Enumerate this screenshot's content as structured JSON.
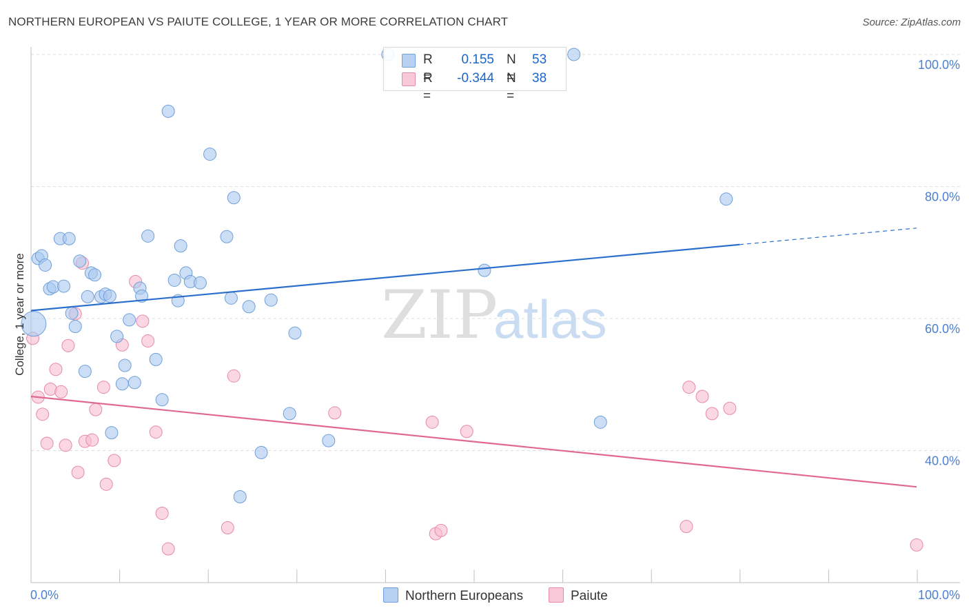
{
  "title": "NORTHERN EUROPEAN VS PAIUTE COLLEGE, 1 YEAR OR MORE CORRELATION CHART",
  "source": "Source: ZipAtlas.com",
  "watermark": {
    "zip": "ZIP",
    "atlas": "atlas"
  },
  "legend": {
    "series1": {
      "r_label": "R =",
      "r_value": "0.155",
      "n_label": "N =",
      "n_value": "53",
      "name": "Northern Europeans"
    },
    "series2": {
      "r_label": "R =",
      "r_value": "-0.344",
      "n_label": "N =",
      "n_value": "38",
      "name": "Paiute"
    }
  },
  "colors": {
    "blue_fill": "#a9c8f0",
    "blue_stroke": "#6f9fd8",
    "blue_line": "#2b6fcc",
    "pink_fill": "#f6bcd0",
    "pink_stroke": "#e58aa8",
    "pink_line": "#e06892",
    "grid": "#dcdcdc",
    "tick_text": "#4b7fcf"
  },
  "chart_data": {
    "type": "scatter",
    "title": "NORTHERN EUROPEAN VS PAIUTE COLLEGE, 1 YEAR OR MORE CORRELATION CHART",
    "xlabel": "",
    "ylabel": "College, 1 year or more",
    "xlim": [
      0,
      100
    ],
    "ylim": [
      20,
      104
    ],
    "x_tick_labels": [
      "0.0%",
      "100.0%"
    ],
    "y_ticks": [
      40,
      60,
      80,
      100
    ],
    "y_tick_labels": [
      "40.0%",
      "60.0%",
      "80.0%",
      "100.0%"
    ],
    "series": [
      {
        "name": "Northern Europeans",
        "color": "#a9c8f0",
        "points": [
          [
            0.3,
            59.2
          ],
          [
            0.8,
            69.1
          ],
          [
            1.2,
            69.5
          ],
          [
            1.6,
            68.1
          ],
          [
            2.1,
            64.5
          ],
          [
            2.5,
            64.8
          ],
          [
            3.3,
            72.1
          ],
          [
            3.7,
            64.9
          ],
          [
            4.3,
            72.1
          ],
          [
            4.6,
            60.8
          ],
          [
            5.0,
            58.8
          ],
          [
            5.5,
            68.7
          ],
          [
            6.1,
            52.0
          ],
          [
            6.4,
            63.3
          ],
          [
            6.8,
            66.9
          ],
          [
            7.2,
            66.6
          ],
          [
            7.9,
            63.3
          ],
          [
            8.4,
            63.7
          ],
          [
            8.9,
            63.4
          ],
          [
            9.1,
            42.7
          ],
          [
            9.7,
            57.3
          ],
          [
            10.3,
            50.1
          ],
          [
            10.6,
            52.9
          ],
          [
            11.1,
            59.8
          ],
          [
            11.7,
            50.3
          ],
          [
            12.3,
            64.6
          ],
          [
            12.5,
            63.4
          ],
          [
            13.2,
            72.5
          ],
          [
            14.1,
            53.8
          ],
          [
            14.8,
            47.7
          ],
          [
            15.5,
            91.4
          ],
          [
            16.2,
            65.8
          ],
          [
            16.6,
            62.7
          ],
          [
            16.9,
            71.0
          ],
          [
            17.5,
            66.9
          ],
          [
            18.0,
            65.6
          ],
          [
            19.1,
            65.4
          ],
          [
            20.2,
            84.9
          ],
          [
            22.1,
            72.4
          ],
          [
            22.6,
            63.1
          ],
          [
            22.9,
            78.3
          ],
          [
            23.6,
            33.0
          ],
          [
            24.6,
            61.8
          ],
          [
            26.0,
            39.7
          ],
          [
            27.1,
            62.8
          ],
          [
            29.2,
            45.6
          ],
          [
            29.8,
            57.8
          ],
          [
            33.6,
            41.5
          ],
          [
            40.3,
            100.0
          ],
          [
            51.2,
            67.3
          ],
          [
            61.3,
            100.0
          ],
          [
            64.3,
            44.3
          ],
          [
            78.5,
            78.1
          ]
        ]
      },
      {
        "name": "Paiute",
        "color": "#f6bcd0",
        "points": [
          [
            0.2,
            57.0
          ],
          [
            0.8,
            48.1
          ],
          [
            1.3,
            45.5
          ],
          [
            1.8,
            41.1
          ],
          [
            2.2,
            49.3
          ],
          [
            2.8,
            52.3
          ],
          [
            3.4,
            48.9
          ],
          [
            3.9,
            40.8
          ],
          [
            4.2,
            55.9
          ],
          [
            5.0,
            60.7
          ],
          [
            5.3,
            36.7
          ],
          [
            5.8,
            68.4
          ],
          [
            6.1,
            41.4
          ],
          [
            6.9,
            41.6
          ],
          [
            7.3,
            46.2
          ],
          [
            8.2,
            49.6
          ],
          [
            8.5,
            34.9
          ],
          [
            9.4,
            38.5
          ],
          [
            10.3,
            56.0
          ],
          [
            11.8,
            65.6
          ],
          [
            12.6,
            59.6
          ],
          [
            13.2,
            56.6
          ],
          [
            14.1,
            42.8
          ],
          [
            14.8,
            30.5
          ],
          [
            15.5,
            25.1
          ],
          [
            22.2,
            28.3
          ],
          [
            22.9,
            51.3
          ],
          [
            34.3,
            45.7
          ],
          [
            45.3,
            44.3
          ],
          [
            45.7,
            27.4
          ],
          [
            46.3,
            27.9
          ],
          [
            49.2,
            42.9
          ],
          [
            74.0,
            28.5
          ],
          [
            74.3,
            49.6
          ],
          [
            75.8,
            48.2
          ],
          [
            76.9,
            45.6
          ],
          [
            78.9,
            46.4
          ],
          [
            100.0,
            25.7
          ]
        ]
      }
    ],
    "trendlines": [
      {
        "series": "Northern Europeans",
        "x0": 0,
        "y0": 61.2,
        "x1": 80,
        "y1": 71.2,
        "dashed_to_x": 100,
        "dashed_to_y": 73.7
      },
      {
        "series": "Paiute",
        "x0": 0,
        "y0": 48.2,
        "x1": 100,
        "y1": 34.5
      }
    ]
  }
}
